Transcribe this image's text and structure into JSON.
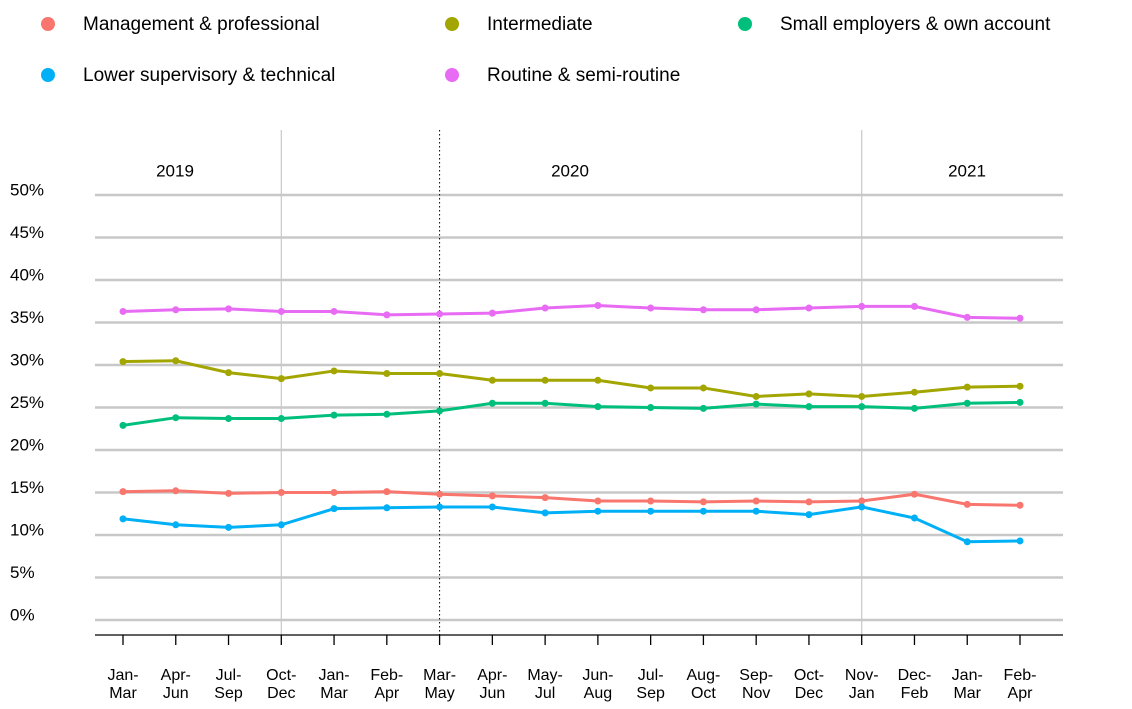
{
  "chart_data": {
    "type": "line",
    "categories": [
      [
        "Jan-",
        "Mar"
      ],
      [
        "Apr-",
        "Jun"
      ],
      [
        "Jul-",
        "Sep"
      ],
      [
        "Oct-",
        "Dec"
      ],
      [
        "Jan-",
        "Mar"
      ],
      [
        "Feb-",
        "Apr"
      ],
      [
        "Mar-",
        "May"
      ],
      [
        "Apr-",
        "Jun"
      ],
      [
        "May-",
        "Jul"
      ],
      [
        "Jun-",
        "Aug"
      ],
      [
        "Jul-",
        "Sep"
      ],
      [
        "Aug-",
        "Oct"
      ],
      [
        "Sep-",
        "Nov"
      ],
      [
        "Oct-",
        "Dec"
      ],
      [
        "Nov-",
        "Jan"
      ],
      [
        "Dec-",
        "Feb"
      ],
      [
        "Jan-",
        "Mar"
      ],
      [
        "Feb-",
        "Apr"
      ]
    ],
    "annotations": [
      "2019",
      "2020",
      "2021"
    ],
    "series": [
      {
        "name": "Management & professional",
        "color": "#f8766d",
        "values": [
          15.1,
          15.2,
          14.9,
          15.0,
          15.0,
          15.1,
          14.8,
          14.6,
          14.4,
          14.0,
          14.0,
          13.9,
          14.0,
          13.9,
          14.0,
          14.8,
          13.6,
          13.5
        ]
      },
      {
        "name": "Intermediate",
        "color": "#a3a500",
        "values": [
          30.4,
          30.5,
          29.1,
          28.4,
          29.3,
          29.0,
          29.0,
          28.2,
          28.2,
          28.2,
          27.3,
          27.3,
          26.3,
          26.6,
          26.3,
          26.8,
          27.4,
          27.5
        ]
      },
      {
        "name": "Small employers & own account",
        "color": "#00bf7d",
        "values": [
          22.9,
          23.8,
          23.7,
          23.7,
          24.1,
          24.2,
          24.6,
          25.5,
          25.5,
          25.1,
          25.0,
          24.9,
          25.4,
          25.1,
          25.1,
          24.9,
          25.5,
          25.6
        ]
      },
      {
        "name": "Lower supervisory & technical",
        "color": "#00b0f6",
        "values": [
          11.9,
          11.2,
          10.9,
          11.2,
          13.1,
          13.2,
          13.3,
          13.3,
          12.6,
          12.8,
          12.8,
          12.8,
          12.8,
          12.4,
          13.3,
          12.0,
          9.2,
          9.3
        ]
      },
      {
        "name": "Routine & semi-routine",
        "color": "#e76bf3",
        "values": [
          36.3,
          36.5,
          36.6,
          36.3,
          36.3,
          35.9,
          36.0,
          36.1,
          36.7,
          37.0,
          36.7,
          36.5,
          36.5,
          36.7,
          36.9,
          36.9,
          35.6,
          35.5
        ]
      }
    ],
    "ylim": [
      0,
      50
    ],
    "yticks": [
      {
        "value": 0,
        "label": "0%"
      },
      {
        "value": 5,
        "label": "5%"
      },
      {
        "value": 10,
        "label": "10%"
      },
      {
        "value": 15,
        "label": "15%"
      },
      {
        "value": 20,
        "label": "20%"
      },
      {
        "value": 25,
        "label": "25%"
      },
      {
        "value": 30,
        "label": "30%"
      },
      {
        "value": 35,
        "label": "35%"
      },
      {
        "value": 40,
        "label": "40%"
      },
      {
        "value": 45,
        "label": "45%"
      },
      {
        "value": 50,
        "label": "50%"
      }
    ],
    "grid": true
  }
}
